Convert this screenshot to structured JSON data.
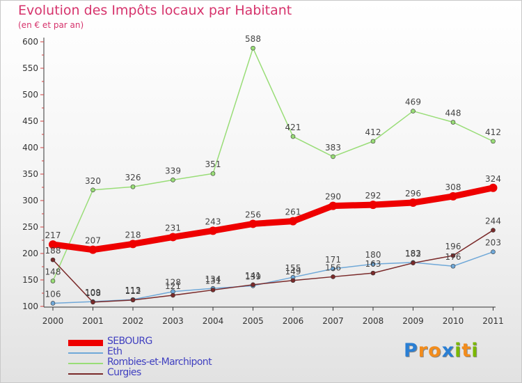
{
  "header": {
    "title": "Evolution des Impôts locaux par Habitant",
    "subtitle": "(en € et par an)"
  },
  "logo": {
    "text": "Proxiti",
    "letters": [
      {
        "ch": "P",
        "color": "#2a7fd4"
      },
      {
        "ch": "r",
        "color": "#f28c1c"
      },
      {
        "ch": "o",
        "color": "#f28c1c"
      },
      {
        "ch": "x",
        "color": "#2a7fd4"
      },
      {
        "ch": "i",
        "color": "#7ab800"
      },
      {
        "ch": "t",
        "color": "#f28c1c"
      },
      {
        "ch": "i",
        "color": "#7ab800"
      }
    ]
  },
  "chart_data": {
    "type": "line",
    "title": "Evolution des Impôts locaux par Habitant",
    "subtitle": "(en € et par an)",
    "xlabel": "",
    "ylabel": "",
    "x": [
      "2000",
      "2001",
      "2002",
      "2003",
      "2004",
      "2005",
      "2006",
      "2007",
      "2008",
      "2009",
      "2010",
      "2011"
    ],
    "y_ticks": [
      "100",
      "150",
      "200",
      "250",
      "300",
      "350",
      "400",
      "450",
      "500",
      "550",
      "600"
    ],
    "ylim": [
      100,
      600
    ],
    "grid": false,
    "legend_position": "bottom-left",
    "series": [
      {
        "name": "SEBOURG",
        "color": "#ee0000",
        "values": [
          217,
          207,
          218,
          231,
          243,
          256,
          261,
          290,
          292,
          296,
          308,
          324
        ],
        "labels": [
          "217",
          "207",
          "218",
          "231",
          "243",
          "256",
          "261",
          "290",
          "292",
          "296",
          "308",
          "324"
        ]
      },
      {
        "name": "Eth",
        "color": "#6fa8d8",
        "values": [
          106,
          109,
          113,
          128,
          134,
          139,
          155,
          171,
          180,
          183,
          176,
          203
        ],
        "labels": [
          "106",
          "109",
          "113",
          "128",
          "134",
          "139",
          "155",
          "171",
          "180",
          "183",
          "176",
          "203"
        ]
      },
      {
        "name": "Rombies-et-Marchipont",
        "color": "#99dd77",
        "values": [
          148,
          320,
          326,
          339,
          351,
          588,
          421,
          383,
          412,
          469,
          448,
          412
        ],
        "labels": [
          "148",
          "320",
          "326",
          "339",
          "351",
          "588",
          "421",
          "383",
          "412",
          "469",
          "448",
          "412"
        ]
      },
      {
        "name": "Curgies",
        "color": "#7a2a2a",
        "values": [
          188,
          108,
          112,
          121,
          131,
          141,
          149,
          156,
          163,
          182,
          196,
          244
        ],
        "labels": [
          "188",
          "108",
          "112",
          "121",
          "131",
          "141",
          "149",
          "156",
          "163",
          "182",
          "196",
          "244"
        ]
      }
    ]
  }
}
